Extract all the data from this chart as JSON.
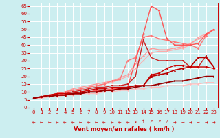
{
  "xlabel": "Vent moyen/en rafales ( km/h )",
  "background_color": "#cceef0",
  "grid_color": "#aadddd",
  "xlim": [
    -0.5,
    23.5
  ],
  "ylim": [
    0,
    67
  ],
  "yticks": [
    0,
    5,
    10,
    15,
    20,
    25,
    30,
    35,
    40,
    45,
    50,
    55,
    60,
    65
  ],
  "xticks": [
    0,
    1,
    2,
    3,
    4,
    5,
    6,
    7,
    8,
    9,
    10,
    11,
    12,
    13,
    14,
    15,
    16,
    17,
    18,
    19,
    20,
    21,
    22,
    23
  ],
  "lines": [
    {
      "x": [
        0,
        1,
        2,
        3,
        4,
        5,
        6,
        7,
        8,
        9,
        10,
        11,
        12,
        13,
        14,
        15,
        16,
        17,
        18,
        19,
        20,
        21,
        22,
        23
      ],
      "y": [
        6,
        6,
        7,
        7,
        8,
        8,
        9,
        9,
        9,
        10,
        10,
        11,
        11,
        12,
        12,
        13,
        13,
        14,
        14,
        14,
        15,
        15,
        16,
        16
      ],
      "color": "#ffbbbb",
      "lw": 0.9,
      "marker": "D",
      "ms": 1.5
    },
    {
      "x": [
        0,
        1,
        2,
        3,
        4,
        5,
        6,
        7,
        8,
        9,
        10,
        11,
        12,
        13,
        14,
        15,
        16,
        17,
        18,
        19,
        20,
        21,
        22,
        23
      ],
      "y": [
        6,
        7,
        8,
        9,
        10,
        11,
        12,
        13,
        14,
        15,
        16,
        18,
        20,
        25,
        30,
        35,
        36,
        36,
        37,
        38,
        40,
        45,
        47,
        50
      ],
      "color": "#ffaaaa",
      "lw": 0.9,
      "marker": "D",
      "ms": 1.5
    },
    {
      "x": [
        0,
        1,
        2,
        3,
        4,
        5,
        6,
        7,
        8,
        9,
        10,
        11,
        12,
        13,
        14,
        15,
        16,
        17,
        18,
        19,
        20,
        21,
        22,
        23
      ],
      "y": [
        6,
        7,
        8,
        9,
        10,
        12,
        13,
        14,
        15,
        16,
        17,
        19,
        21,
        28,
        33,
        38,
        37,
        37,
        38,
        39,
        41,
        44,
        46,
        50
      ],
      "color": "#ff9999",
      "lw": 0.9,
      "marker": "D",
      "ms": 1.5
    },
    {
      "x": [
        0,
        1,
        2,
        3,
        4,
        5,
        6,
        7,
        8,
        9,
        10,
        11,
        12,
        13,
        14,
        15,
        16,
        17,
        18,
        19,
        20,
        21,
        22,
        23
      ],
      "y": [
        6,
        7,
        8,
        9,
        10,
        11,
        12,
        13,
        14,
        15,
        17,
        18,
        30,
        32,
        45,
        46,
        44,
        43,
        42,
        41,
        40,
        38,
        46,
        50
      ],
      "color": "#ff7777",
      "lw": 1.0,
      "marker": "D",
      "ms": 1.8
    },
    {
      "x": [
        0,
        1,
        2,
        3,
        4,
        5,
        6,
        7,
        8,
        9,
        10,
        11,
        12,
        13,
        14,
        15,
        16,
        17,
        18,
        19,
        20,
        21,
        22,
        23
      ],
      "y": [
        6,
        7,
        8,
        8,
        9,
        9,
        10,
        10,
        11,
        11,
        12,
        12,
        13,
        30,
        47,
        65,
        62,
        44,
        40,
        40,
        40,
        41,
        47,
        50
      ],
      "color": "#ff5555",
      "lw": 1.0,
      "marker": "D",
      "ms": 1.8
    },
    {
      "x": [
        0,
        1,
        2,
        3,
        4,
        5,
        6,
        7,
        8,
        9,
        10,
        11,
        12,
        13,
        14,
        15,
        16,
        17,
        18,
        19,
        20,
        21,
        22,
        23
      ],
      "y": [
        6,
        7,
        8,
        9,
        9,
        10,
        11,
        12,
        13,
        13,
        14,
        14,
        15,
        20,
        43,
        32,
        30,
        30,
        30,
        30,
        26,
        26,
        33,
        26
      ],
      "color": "#cc2222",
      "lw": 1.0,
      "marker": "s",
      "ms": 2.0
    },
    {
      "x": [
        0,
        1,
        2,
        3,
        4,
        5,
        6,
        7,
        8,
        9,
        10,
        11,
        12,
        13,
        14,
        15,
        16,
        17,
        18,
        19,
        20,
        21,
        22,
        23
      ],
      "y": [
        6,
        7,
        8,
        9,
        9,
        9,
        10,
        11,
        12,
        12,
        13,
        13,
        13,
        14,
        14,
        21,
        22,
        25,
        27,
        27,
        26,
        26,
        26,
        25
      ],
      "color": "#cc0000",
      "lw": 1.0,
      "marker": "D",
      "ms": 2.0
    },
    {
      "x": [
        0,
        1,
        2,
        3,
        4,
        5,
        6,
        7,
        8,
        9,
        10,
        11,
        12,
        13,
        14,
        15,
        16,
        17,
        18,
        19,
        20,
        21,
        22,
        23
      ],
      "y": [
        6,
        7,
        8,
        8,
        8,
        9,
        9,
        10,
        10,
        11,
        11,
        12,
        13,
        14,
        14,
        20,
        21,
        22,
        24,
        25,
        26,
        32,
        32,
        26
      ],
      "color": "#bb0000",
      "lw": 1.2,
      "marker": "^",
      "ms": 2.2
    },
    {
      "x": [
        0,
        1,
        2,
        3,
        4,
        5,
        6,
        7,
        8,
        9,
        10,
        11,
        12,
        13,
        14,
        15,
        16,
        17,
        18,
        19,
        20,
        21,
        22,
        23
      ],
      "y": [
        6,
        7,
        7,
        8,
        8,
        9,
        9,
        10,
        10,
        11,
        11,
        12,
        12,
        13,
        14,
        14,
        15,
        16,
        17,
        17,
        18,
        19,
        20,
        20
      ],
      "color": "#990000",
      "lw": 1.3,
      "marker": ">",
      "ms": 2.0
    }
  ],
  "wind_arrows": [
    "←",
    "←",
    "←",
    "←",
    "←",
    "←",
    "←",
    "←",
    "←",
    "←",
    "←",
    "←",
    "←",
    "↙",
    "↑",
    "↗",
    "↗",
    "↗",
    "→",
    "→",
    "→",
    "→",
    "→",
    "→"
  ]
}
